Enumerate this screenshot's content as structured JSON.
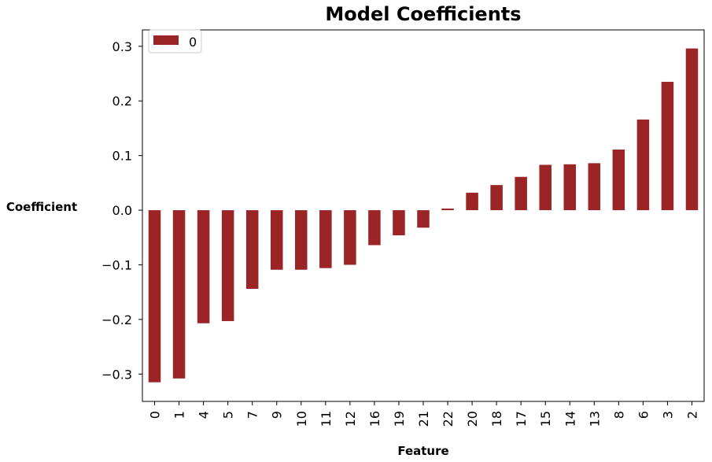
{
  "chart_data": {
    "type": "bar",
    "title": "Model Coefficients",
    "xlabel": "Feature",
    "ylabel": "Coefficient",
    "categories": [
      "0",
      "1",
      "4",
      "5",
      "7",
      "9",
      "10",
      "11",
      "12",
      "16",
      "19",
      "21",
      "22",
      "20",
      "18",
      "17",
      "15",
      "14",
      "13",
      "8",
      "6",
      "3",
      "2"
    ],
    "series": [
      {
        "name": "0",
        "values": [
          -0.315,
          -0.308,
          -0.207,
          -0.203,
          -0.144,
          -0.109,
          -0.109,
          -0.106,
          -0.1,
          -0.064,
          -0.046,
          -0.032,
          0.003,
          0.032,
          0.046,
          0.061,
          0.083,
          0.084,
          0.086,
          0.111,
          0.166,
          0.235,
          0.296
        ]
      }
    ],
    "ylim": [
      -0.35,
      0.33
    ],
    "yticks": [
      -0.3,
      -0.2,
      -0.1,
      0.0,
      0.1,
      0.2,
      0.3
    ],
    "ytick_labels": [
      "−0.3",
      "−0.2",
      "−0.1",
      "0.0",
      "0.1",
      "0.2",
      "0.3"
    ],
    "grid": false,
    "legend": "top-left",
    "colors": {
      "bar": "#9b2526"
    }
  }
}
